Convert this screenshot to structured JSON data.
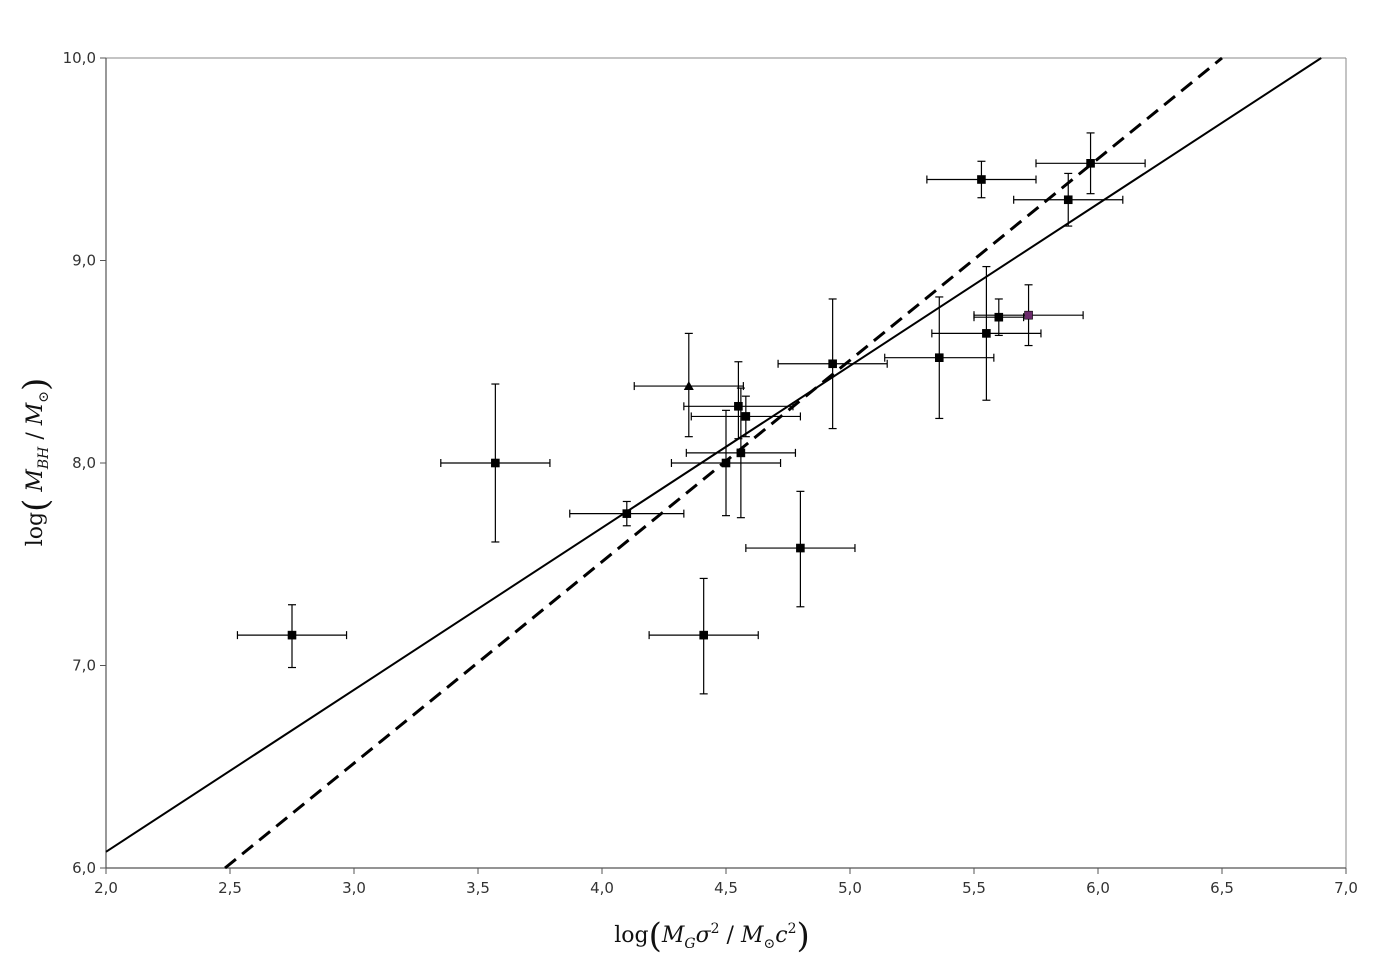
{
  "chart_data": {
    "type": "scatter",
    "title": "",
    "xlabel": "log(M_G σ² / M_⊙ c²)",
    "ylabel": "log(M_BH / M_⊙)",
    "xlim": [
      2.0,
      7.0
    ],
    "ylim": [
      6.0,
      10.0
    ],
    "x_ticks": [
      "2,0",
      "2,5",
      "3,0",
      "3,5",
      "4,0",
      "4,5",
      "5,0",
      "5,5",
      "6,0",
      "6,5",
      "7,0"
    ],
    "y_ticks": [
      "6,0",
      "7,0",
      "8,0",
      "9,0",
      "10,0"
    ],
    "grid": false,
    "legend": "none",
    "series": [
      {
        "marker": "square",
        "color": "#000000",
        "points": [
          {
            "x": 2.75,
            "y": 7.15,
            "xerr": 0.22,
            "yerr_low": 0.16,
            "yerr_high": 0.15
          },
          {
            "x": 3.57,
            "y": 8.0,
            "xerr": 0.22,
            "yerr_low": 0.39,
            "yerr_high": 0.39
          },
          {
            "x": 4.1,
            "y": 7.75,
            "xerr": 0.23,
            "yerr_low": 0.06,
            "yerr_high": 0.06
          },
          {
            "x": 4.41,
            "y": 7.15,
            "xerr": 0.22,
            "yerr_low": 0.29,
            "yerr_high": 0.28
          },
          {
            "x": 4.5,
            "y": 8.0,
            "xerr": 0.22,
            "yerr_low": 0.26,
            "yerr_high": 0.26
          },
          {
            "x": 4.55,
            "y": 8.28,
            "xerr": 0.22,
            "yerr_low": 0.16,
            "yerr_high": 0.22
          },
          {
            "x": 4.56,
            "y": 8.05,
            "xerr": 0.22,
            "yerr_low": 0.32,
            "yerr_high": 0.32
          },
          {
            "x": 4.58,
            "y": 8.23,
            "xerr": 0.22,
            "yerr_low": 0.1,
            "yerr_high": 0.1
          },
          {
            "x": 4.8,
            "y": 7.58,
            "xerr": 0.22,
            "yerr_low": 0.29,
            "yerr_high": 0.28
          },
          {
            "x": 4.93,
            "y": 8.49,
            "xerr": 0.22,
            "yerr_low": 0.32,
            "yerr_high": 0.32
          },
          {
            "x": 5.36,
            "y": 8.52,
            "xerr": 0.22,
            "yerr_low": 0.3,
            "yerr_high": 0.3
          },
          {
            "x": 5.53,
            "y": 9.4,
            "xerr": 0.22,
            "yerr_low": 0.09,
            "yerr_high": 0.09
          },
          {
            "x": 5.55,
            "y": 8.64,
            "xerr": 0.22,
            "yerr_low": 0.33,
            "yerr_high": 0.33
          },
          {
            "x": 5.6,
            "y": 8.72,
            "xerr": 0.1,
            "yerr_low": 0.09,
            "yerr_high": 0.09
          },
          {
            "x": 5.88,
            "y": 9.3,
            "xerr": 0.22,
            "yerr_low": 0.13,
            "yerr_high": 0.13
          },
          {
            "x": 5.97,
            "y": 9.48,
            "xerr": 0.22,
            "yerr_low": 0.15,
            "yerr_high": 0.15
          }
        ]
      },
      {
        "marker": "triangle",
        "color": "#000000",
        "points": [
          {
            "x": 4.35,
            "y": 8.38,
            "xerr": 0.22,
            "yerr_low": 0.25,
            "yerr_high": 0.26
          }
        ]
      },
      {
        "marker": "square",
        "color": "#6b2a6b",
        "points": [
          {
            "x": 5.72,
            "y": 8.73,
            "xerr": 0.22,
            "yerr_low": 0.15,
            "yerr_high": 0.15
          }
        ]
      }
    ],
    "fit_lines": [
      {
        "style": "solid",
        "color": "#000000",
        "x": [
          2.0,
          6.9
        ],
        "y": [
          6.08,
          10.0
        ]
      },
      {
        "style": "dashed",
        "color": "#000000",
        "x": [
          2.48,
          6.5
        ],
        "y": [
          6.0,
          10.0
        ]
      }
    ]
  }
}
